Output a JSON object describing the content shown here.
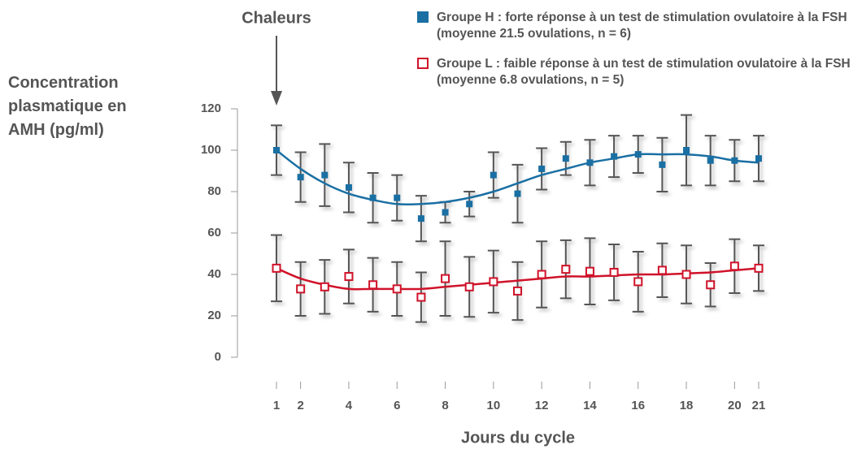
{
  "chart_data": {
    "type": "errorbar_line",
    "y_label": "Concentration plasmatique en AMH (pg/ml)",
    "x_label": "Jours du cycle",
    "annotation": {
      "text": "Chaleurs",
      "x": 1
    },
    "x": [
      1,
      2,
      3,
      4,
      5,
      6,
      7,
      8,
      9,
      10,
      11,
      12,
      13,
      14,
      15,
      16,
      17,
      18,
      19,
      20,
      21
    ],
    "xlim": [
      1,
      21
    ],
    "xticks": [
      1,
      2,
      4,
      6,
      8,
      10,
      12,
      14,
      16,
      18,
      20,
      21
    ],
    "ylim": [
      0,
      120
    ],
    "yticks": [
      0,
      20,
      40,
      60,
      80,
      100,
      120
    ],
    "series": [
      {
        "name": "Groupe H : forte réponse à un test de stimulation ovulatoire à la FSH (moyenne 21.5 ovulations, n = 6)",
        "color": "#1a6fa3",
        "marker": "filled",
        "values": [
          100,
          87,
          88,
          82,
          77,
          77,
          67,
          70,
          74,
          88,
          79,
          91,
          96,
          94,
          97,
          98,
          93,
          100,
          95,
          95,
          96
        ],
        "errors": [
          12,
          12,
          15,
          12,
          12,
          11,
          11,
          5,
          6,
          11,
          14,
          10,
          8,
          11,
          10,
          9,
          13,
          17,
          12,
          10,
          11
        ],
        "trend_values": [
          100,
          91,
          84,
          79,
          76,
          74,
          74,
          75,
          77,
          80,
          84,
          88,
          91,
          94,
          96,
          98,
          98,
          98,
          97,
          95,
          94
        ]
      },
      {
        "name": "Groupe L : faible réponse à un test de stimulation ovulatoire à la FSH (moyenne 6.8 ovulations, n = 5)",
        "color": "#d0132a",
        "marker": "open",
        "values": [
          43,
          33,
          34,
          39,
          35,
          33,
          29,
          38,
          34,
          36.5,
          32,
          40,
          42.5,
          41.5,
          41,
          36.5,
          42,
          40,
          35,
          44,
          43
        ],
        "errors": [
          16,
          13,
          13,
          13,
          13,
          13,
          12,
          18,
          14.5,
          15,
          14,
          16,
          14,
          16,
          13.5,
          14.5,
          13,
          14,
          10.5,
          13,
          11
        ],
        "trend_values": [
          43,
          38,
          35,
          33,
          33,
          33,
          33,
          34,
          35,
          36,
          37,
          38,
          39,
          39,
          39.5,
          40,
          40,
          40.5,
          41,
          42,
          43
        ]
      }
    ]
  }
}
